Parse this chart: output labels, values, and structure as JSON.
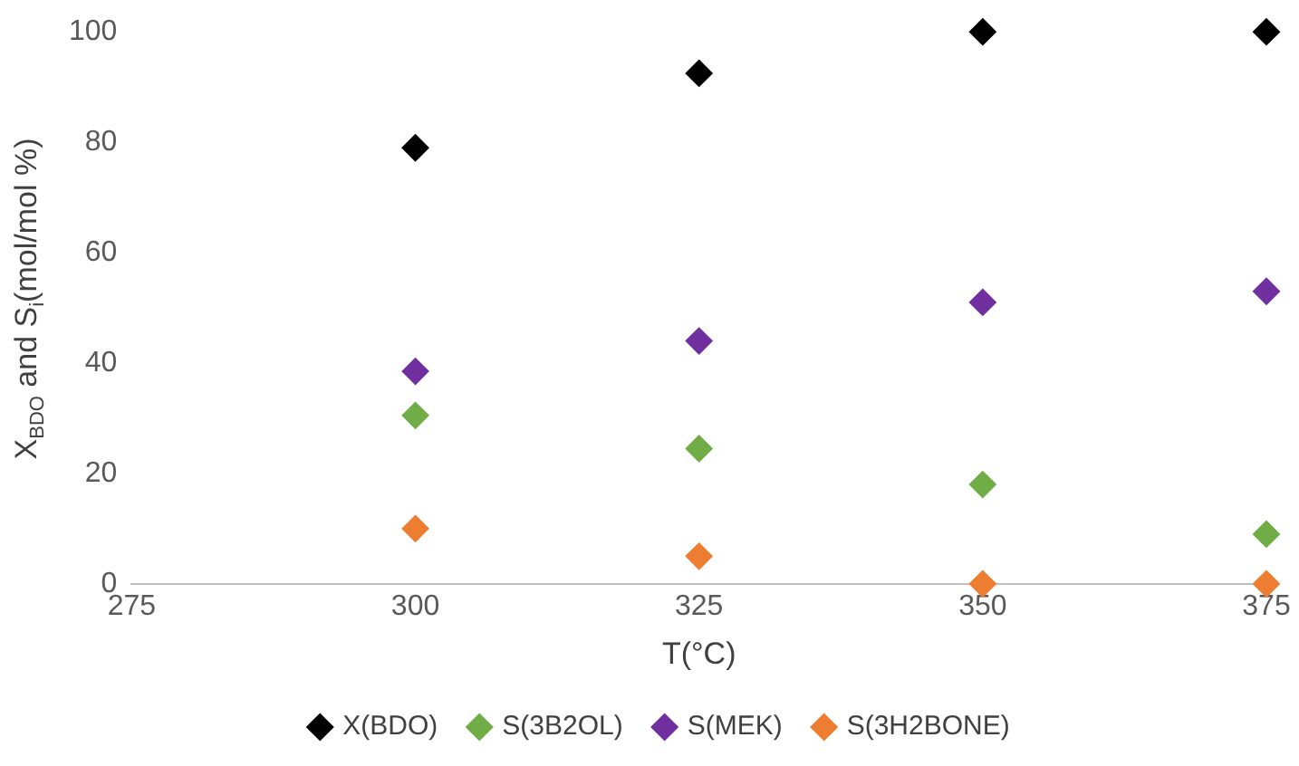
{
  "chart_data": {
    "type": "scatter",
    "xlabel": "T(°C)",
    "ylabel": "X$_{BDO}$ and S$_{i}$(mol/mol %)",
    "x": [
      300,
      325,
      350,
      375
    ],
    "series": [
      {
        "name": "X(BDO)",
        "color": "#000000",
        "values": [
          79,
          92.5,
          100,
          100
        ]
      },
      {
        "name": "S(3B2OL)",
        "color": "#70ad47",
        "values": [
          30.5,
          24.5,
          18,
          9
        ]
      },
      {
        "name": "S(MEK)",
        "color": "#7030a0",
        "values": [
          38.5,
          44,
          51,
          53
        ]
      },
      {
        "name": "S(3H2BONE)",
        "color": "#ed7d31",
        "values": [
          10,
          5,
          0,
          0
        ]
      }
    ],
    "xlim": [
      275,
      375
    ],
    "xticks": [
      275,
      300,
      325,
      350,
      375
    ],
    "ylim": [
      0,
      100
    ],
    "yticks": [
      0,
      20,
      40,
      60,
      80,
      100
    ],
    "grid": false,
    "legend": "bottom",
    "marker": "diamond"
  }
}
